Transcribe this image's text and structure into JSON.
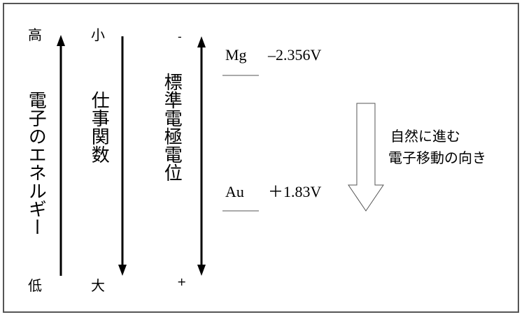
{
  "energy_axis": {
    "high_label": "高",
    "low_label": "低",
    "title": "電子のエネルギー"
  },
  "work_function_axis": {
    "small_label": "小",
    "large_label": "大",
    "title": "仕事関数"
  },
  "potential_axis": {
    "minus_label": "-",
    "plus_label": "+",
    "title": "標準電極電位"
  },
  "levels": [
    {
      "element": "Mg",
      "potential": "–2.356V"
    },
    {
      "element": "Au",
      "potential": "＋1.83V"
    }
  ],
  "caption": {
    "line1": "自然に進む",
    "line2": "電子移動の向き"
  }
}
